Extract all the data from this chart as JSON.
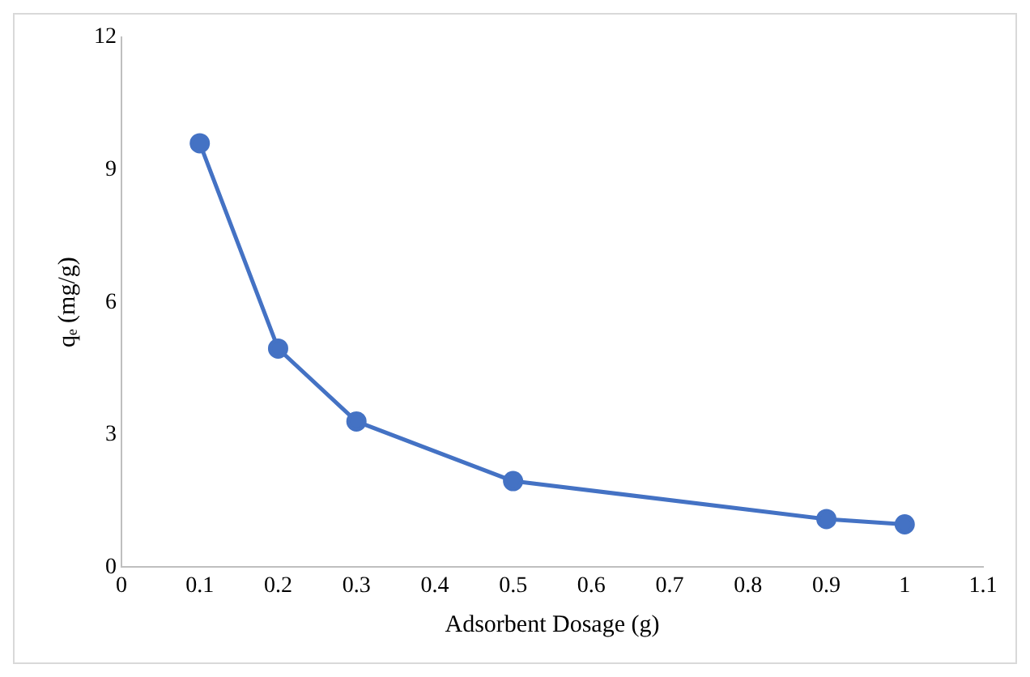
{
  "chart_data": {
    "type": "line",
    "xlabel": "Adsorbent Dosage (g)",
    "ylabel": "qₑ (mg/g)",
    "x": [
      0.1,
      0.2,
      0.3,
      0.5,
      0.9,
      1.0
    ],
    "series": [
      {
        "color": "#4472c4",
        "values": [
          9.6,
          4.95,
          3.3,
          1.95,
          1.09,
          0.97
        ]
      }
    ],
    "xlim": [
      0,
      1.1
    ],
    "xticks": [
      0,
      0.1,
      0.2,
      0.3,
      0.4,
      0.5,
      0.6,
      0.7,
      0.8,
      0.9,
      1,
      1.1
    ],
    "ylim": [
      0,
      12
    ],
    "yticks": [
      0,
      3,
      6,
      9,
      12
    ],
    "grid": false,
    "legend": false,
    "marker": "circle",
    "line_style": "solid"
  }
}
